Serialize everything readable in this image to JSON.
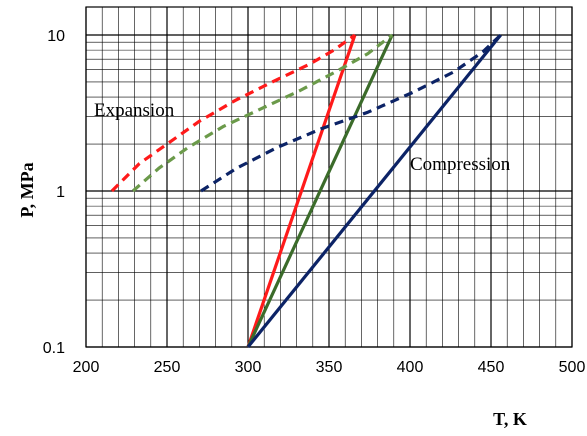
{
  "chart_data": {
    "type": "line",
    "title": "",
    "xlabel": "T, K",
    "ylabel": "P, MPa",
    "xlim": [
      200,
      500
    ],
    "ylim": [
      0.1,
      10
    ],
    "yscale": "log",
    "x_ticks": [
      "200",
      "250",
      "300",
      "350",
      "400",
      "450",
      "500"
    ],
    "y_ticks": [
      "0.1",
      "1",
      "10"
    ],
    "grid": true,
    "annotations": [
      "Expansion",
      "Compression"
    ],
    "series": [
      {
        "color": "#ff1a1a",
        "style": "solid",
        "x": [
          300,
          366
        ],
        "y": [
          0.1,
          10
        ]
      },
      {
        "color": "#3b6b2a",
        "style": "solid",
        "x": [
          300,
          389
        ],
        "y": [
          0.1,
          10
        ]
      },
      {
        "color": "#0c2366",
        "style": "solid",
        "x": [
          300,
          456
        ],
        "y": [
          0.1,
          10
        ]
      },
      {
        "color": "#ff1a1a",
        "style": "dashed",
        "x": [
          216,
          233,
          250,
          270,
          292,
          315,
          338,
          353,
          366
        ],
        "y": [
          1.0,
          1.5,
          2.0,
          2.8,
          3.8,
          5.0,
          6.5,
          8.0,
          10.0
        ]
      },
      {
        "color": "#6b9a4a",
        "style": "dashed",
        "x": [
          229,
          245,
          263,
          285,
          309,
          332,
          354,
          374,
          389
        ],
        "y": [
          1.0,
          1.4,
          1.9,
          2.6,
          3.4,
          4.4,
          5.8,
          7.6,
          10.0
        ]
      },
      {
        "color": "#0c2366",
        "style": "dashed",
        "x": [
          271,
          293,
          318,
          345,
          374,
          402,
          427,
          445,
          456
        ],
        "y": [
          1.0,
          1.4,
          1.9,
          2.5,
          3.2,
          4.3,
          5.8,
          7.8,
          10.0
        ]
      }
    ]
  }
}
